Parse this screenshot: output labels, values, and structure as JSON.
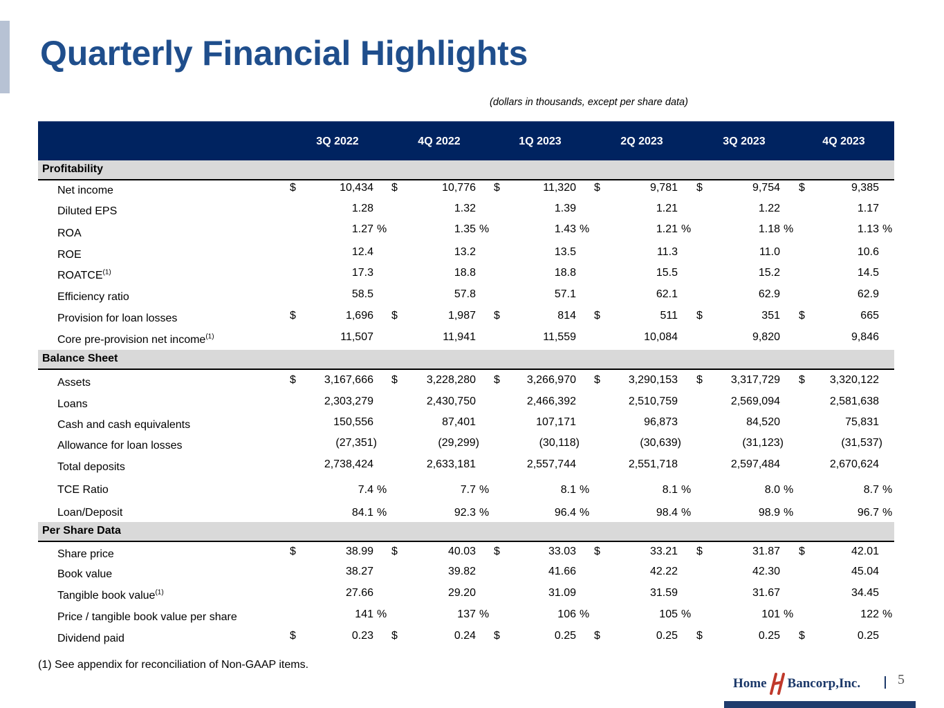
{
  "title": "Quarterly Financial Highlights",
  "subtitle": "(dollars in thousands, except per share data)",
  "columns": [
    "3Q 2022",
    "4Q 2022",
    "1Q 2023",
    "2Q 2023",
    "3Q 2023",
    "4Q 2023"
  ],
  "sections": [
    {
      "name": "Profitability",
      "rows": [
        {
          "label": "Net income",
          "sup": "",
          "dollar": true,
          "pct": false,
          "values": [
            "10,434",
            "10,776",
            "11,320",
            "9,781",
            "9,754",
            "9,385"
          ]
        },
        {
          "label": "Diluted EPS",
          "sup": "",
          "dollar": false,
          "pct": false,
          "values": [
            "1.28",
            "1.32",
            "1.39",
            "1.21",
            "1.22",
            "1.17"
          ]
        },
        {
          "label": "ROA",
          "sup": "",
          "dollar": false,
          "pct": true,
          "values": [
            "1.27",
            "1.35",
            "1.43",
            "1.21",
            "1.18",
            "1.13"
          ]
        },
        {
          "label": "ROE",
          "sup": "",
          "dollar": false,
          "pct": false,
          "values": [
            "12.4",
            "13.2",
            "13.5",
            "11.3",
            "11.0",
            "10.6"
          ]
        },
        {
          "label": "ROATCE",
          "sup": "(1)",
          "dollar": false,
          "pct": false,
          "values": [
            "17.3",
            "18.8",
            "18.8",
            "15.5",
            "15.2",
            "14.5"
          ]
        },
        {
          "label": "Efficiency ratio",
          "sup": "",
          "dollar": false,
          "pct": false,
          "values": [
            "58.5",
            "57.8",
            "57.1",
            "62.1",
            "62.9",
            "62.9"
          ]
        },
        {
          "label": "Provision for loan losses",
          "sup": "",
          "dollar": true,
          "pct": false,
          "values": [
            "1,696",
            "1,987",
            "814",
            "511",
            "351",
            "665"
          ]
        },
        {
          "label": "Core pre-provision net income",
          "sup": "(1)",
          "dollar": false,
          "pct": false,
          "values": [
            "11,507",
            "11,941",
            "11,559",
            "10,084",
            "9,820",
            "9,846"
          ]
        }
      ]
    },
    {
      "name": "Balance Sheet",
      "rows": [
        {
          "label": "Assets",
          "sup": "",
          "dollar": true,
          "pct": false,
          "values": [
            "3,167,666",
            "3,228,280",
            "3,266,970",
            "3,290,153",
            "3,317,729",
            "3,320,122"
          ]
        },
        {
          "label": "Loans",
          "sup": "",
          "dollar": false,
          "pct": false,
          "values": [
            "2,303,279",
            "2,430,750",
            "2,466,392",
            "2,510,759",
            "2,569,094",
            "2,581,638"
          ]
        },
        {
          "label": "Cash and cash equivalents",
          "sup": "",
          "dollar": false,
          "pct": false,
          "values": [
            "150,556",
            "87,401",
            "107,171",
            "96,873",
            "84,520",
            "75,831"
          ]
        },
        {
          "label": "Allowance for loan losses",
          "sup": "",
          "dollar": false,
          "pct": false,
          "values": [
            "(27,351)",
            "(29,299)",
            "(30,118)",
            "(30,639)",
            "(31,123)",
            "(31,537)"
          ]
        },
        {
          "label": "Total deposits",
          "sup": "",
          "dollar": false,
          "pct": false,
          "values": [
            "2,738,424",
            "2,633,181",
            "2,557,744",
            "2,551,718",
            "2,597,484",
            "2,670,624"
          ]
        },
        {
          "label": "TCE Ratio",
          "sup": "",
          "dollar": false,
          "pct": true,
          "values": [
            "7.4",
            "7.7",
            "8.1",
            "8.1",
            "8.0",
            "8.7"
          ]
        },
        {
          "label": "Loan/Deposit",
          "sup": "",
          "dollar": false,
          "pct": true,
          "values": [
            "84.1",
            "92.3",
            "96.4",
            "98.4",
            "98.9",
            "96.7"
          ]
        }
      ]
    },
    {
      "name": "Per Share Data",
      "rows": [
        {
          "label": "Share price",
          "sup": "",
          "dollar": true,
          "pct": false,
          "values": [
            "38.99",
            "40.03",
            "33.03",
            "33.21",
            "31.87",
            "42.01"
          ]
        },
        {
          "label": "Book value",
          "sup": "",
          "dollar": false,
          "pct": false,
          "values": [
            "38.27",
            "39.82",
            "41.66",
            "42.22",
            "42.30",
            "45.04"
          ]
        },
        {
          "label": "Tangible book value",
          "sup": "(1)",
          "dollar": false,
          "pct": false,
          "values": [
            "27.66",
            "29.20",
            "31.09",
            "31.59",
            "31.67",
            "34.45"
          ]
        },
        {
          "label": "Price / tangible book value per share",
          "sup": "",
          "dollar": false,
          "pct": true,
          "values": [
            "141",
            "137",
            "106",
            "105",
            "101",
            "122"
          ]
        },
        {
          "label": "Dividend paid",
          "sup": "",
          "dollar": true,
          "pct": false,
          "values": [
            "0.23",
            "0.24",
            "0.25",
            "0.25",
            "0.25",
            "0.25"
          ]
        }
      ]
    }
  ],
  "dollar_symbol": "$",
  "percent_symbol": "%",
  "footnote": "(1)   See appendix for reconciliation of Non-GAAP items.",
  "logo": {
    "left": "Home",
    "right": "Bancorp,Inc.",
    "mark": "HB"
  },
  "page_number": "5",
  "colors": {
    "title": "#1f4e8c",
    "header_bg": "#002360",
    "section_bg": "#d9d9d9"
  }
}
